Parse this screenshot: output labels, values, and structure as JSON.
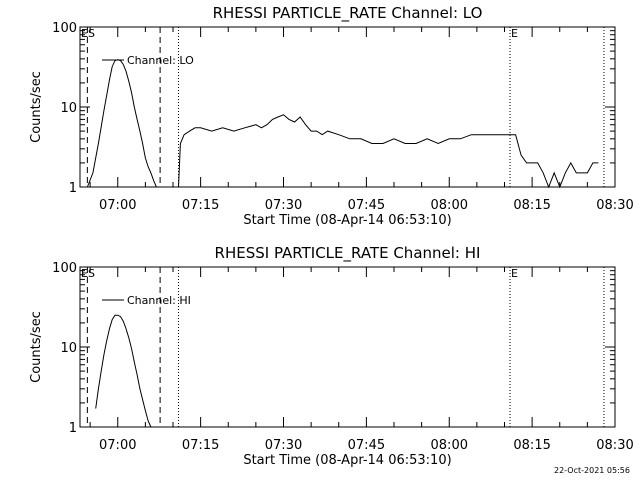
{
  "chart_data": [
    {
      "type": "line",
      "title": "RHESSI PARTICLE_RATE Channel: LO",
      "xlabel": "Start Time (08-Apr-14 06:53:10)",
      "ylabel": "Counts/sec",
      "y_scale": "log",
      "ylim": [
        1,
        100
      ],
      "xlim": [
        "06:53:10",
        "08:30:00"
      ],
      "x_ticks": [
        "07:00",
        "07:15",
        "07:30",
        "07:45",
        "08:00",
        "08:15",
        "08:30"
      ],
      "y_ticks": [
        "1",
        "10",
        "100"
      ],
      "legend": {
        "position": "top-left",
        "entries": [
          "Channel: LO"
        ]
      },
      "grid": false,
      "markers": {
        "dashed": [
          "06:54:30",
          "07:07:40"
        ],
        "dotted": [
          "07:11:00",
          "08:11:00",
          "08:28:00"
        ],
        "labels": [
          {
            "text": "ES",
            "at": "06:53:10"
          },
          {
            "text": "E",
            "at": "08:11:00"
          }
        ]
      },
      "series": [
        {
          "name": "Channel: LO",
          "x": [
            "06:54:30",
            "06:55:30",
            "06:56:30",
            "06:57:30",
            "06:58:00",
            "06:58:30",
            "06:59:00",
            "06:59:30",
            "07:00:00",
            "07:00:30",
            "07:01:00",
            "07:01:30",
            "07:02:00",
            "07:02:30",
            "07:03:00",
            "07:03:30",
            "07:04:00",
            "07:04:30",
            "07:05:00",
            "07:05:30",
            "07:06:00",
            "07:06:30",
            "07:07:00",
            "07:08:00",
            "07:09:00",
            "07:10:00",
            "07:11:00",
            "07:11:20",
            "07:12:00",
            "07:13:00",
            "07:14:00",
            "07:15:00",
            "07:17:00",
            "07:19:00",
            "07:21:00",
            "07:23:00",
            "07:25:00",
            "07:26:00",
            "07:27:00",
            "07:28:00",
            "07:29:00",
            "07:30:00",
            "07:31:00",
            "07:32:00",
            "07:33:00",
            "07:34:00",
            "07:35:00",
            "07:36:00",
            "07:37:00",
            "07:38:00",
            "07:40:00",
            "07:42:00",
            "07:44:00",
            "07:46:00",
            "07:48:00",
            "07:50:00",
            "07:52:00",
            "07:54:00",
            "07:56:00",
            "07:58:00",
            "08:00:00",
            "08:02:00",
            "08:04:00",
            "08:06:00",
            "08:08:00",
            "08:10:00",
            "08:12:00",
            "08:13:00",
            "08:14:00",
            "08:15:00",
            "08:16:00",
            "08:17:00",
            "08:18:00",
            "08:19:00",
            "08:20:00",
            "08:21:00",
            "08:22:00",
            "08:23:00",
            "08:24:00",
            "08:25:00",
            "08:26:00",
            "08:27:00"
          ],
          "y": [
            1,
            1.5,
            3.5,
            9,
            14,
            22,
            32,
            38,
            39,
            38,
            34,
            28,
            21,
            15,
            10,
            7,
            5,
            3.5,
            2.3,
            1.8,
            1.5,
            1.2,
            1,
            1,
            1,
            1,
            1,
            3.5,
            4.5,
            5,
            5.5,
            5.5,
            5,
            5.5,
            5,
            5.5,
            6,
            5.5,
            6,
            7,
            7.5,
            8,
            7,
            6.5,
            7.5,
            6,
            5,
            5,
            4.5,
            5,
            4.5,
            4,
            4,
            3.5,
            3.5,
            4,
            3.5,
            3.5,
            4,
            3.5,
            4,
            4,
            4.5,
            4.5,
            4.5,
            4.5,
            4.5,
            2.5,
            2,
            2,
            2,
            1.5,
            1,
            1.5,
            1,
            1.5,
            2,
            1.5,
            1.5,
            1.5,
            2,
            2
          ]
        }
      ]
    },
    {
      "type": "line",
      "title": "RHESSI PARTICLE_RATE Channel: HI",
      "xlabel": "Start Time (08-Apr-14 06:53:10)",
      "ylabel": "Counts/sec",
      "y_scale": "log",
      "ylim": [
        1,
        100
      ],
      "xlim": [
        "06:53:10",
        "08:30:00"
      ],
      "x_ticks": [
        "07:00",
        "07:15",
        "07:30",
        "07:45",
        "08:00",
        "08:15",
        "08:30"
      ],
      "y_ticks": [
        "1",
        "10",
        "100"
      ],
      "legend": {
        "position": "top-left",
        "entries": [
          "Channel: HI"
        ]
      },
      "grid": false,
      "markers": {
        "dashed": [
          "06:54:30",
          "07:07:40"
        ],
        "dotted": [
          "07:11:00",
          "08:11:00",
          "08:28:00"
        ],
        "labels": [
          {
            "text": "ES",
            "at": "06:53:10"
          },
          {
            "text": "E",
            "at": "08:11:00"
          }
        ]
      },
      "series": [
        {
          "name": "Channel: HI",
          "x": [
            "06:56:00",
            "06:56:30",
            "06:57:00",
            "06:57:30",
            "06:58:00",
            "06:58:30",
            "06:59:00",
            "06:59:30",
            "07:00:00",
            "07:00:30",
            "07:01:00",
            "07:01:30",
            "07:02:00",
            "07:02:30",
            "07:03:00",
            "07:03:30",
            "07:04:00",
            "07:04:30",
            "07:05:00",
            "07:05:30",
            "07:06:00"
          ],
          "y": [
            1.7,
            3,
            5,
            8,
            12,
            17,
            22,
            25,
            25,
            24,
            21,
            17,
            13,
            9.5,
            6.5,
            4.5,
            3,
            2.2,
            1.6,
            1.2,
            1
          ]
        }
      ]
    }
  ],
  "footer": {
    "timestamp": "22-Oct-2021 05:56"
  }
}
